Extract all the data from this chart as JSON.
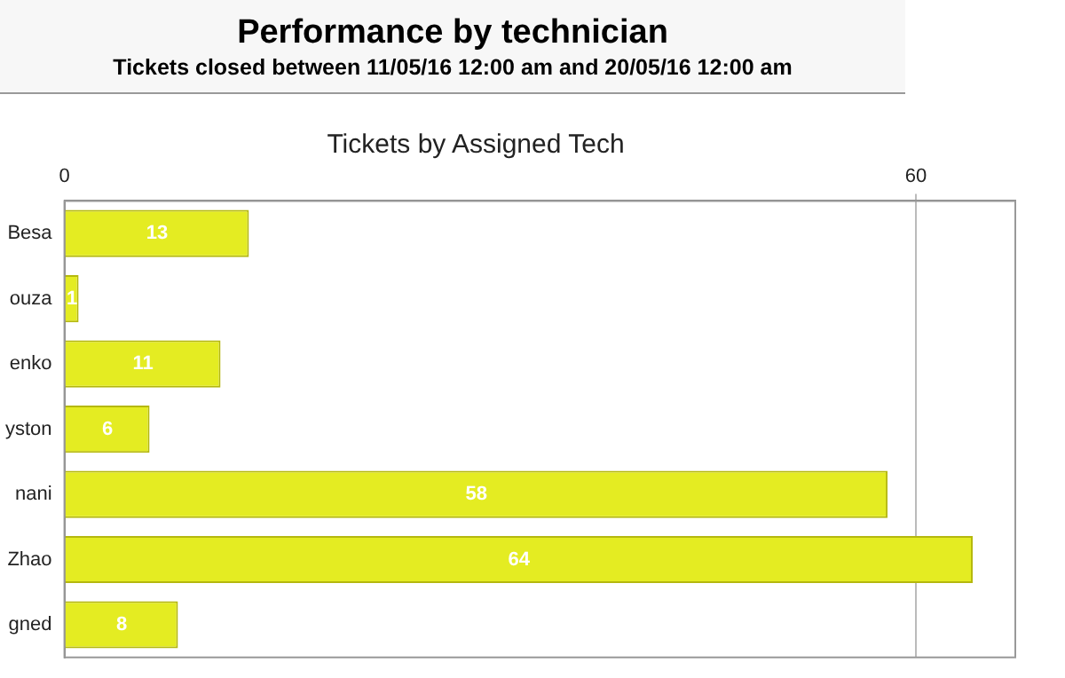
{
  "chart_data": {
    "type": "bar",
    "orientation": "horizontal",
    "title": "Performance by technician",
    "subtitle": "Tickets closed between 11/05/16 12:00 am and 20/05/16 12:00 am",
    "annotations": [
      "Tickets by Assigned Tech"
    ],
    "categories": [
      "Besa",
      "ouza",
      "enko",
      "yston",
      "nani",
      "Zhao",
      "gned"
    ],
    "values": [
      13,
      1,
      11,
      6,
      58,
      64,
      8
    ],
    "color": "#e4ec22",
    "xlim": [
      0,
      67
    ],
    "xticks": [
      0,
      60
    ],
    "grid": "x",
    "data_labels": true
  }
}
